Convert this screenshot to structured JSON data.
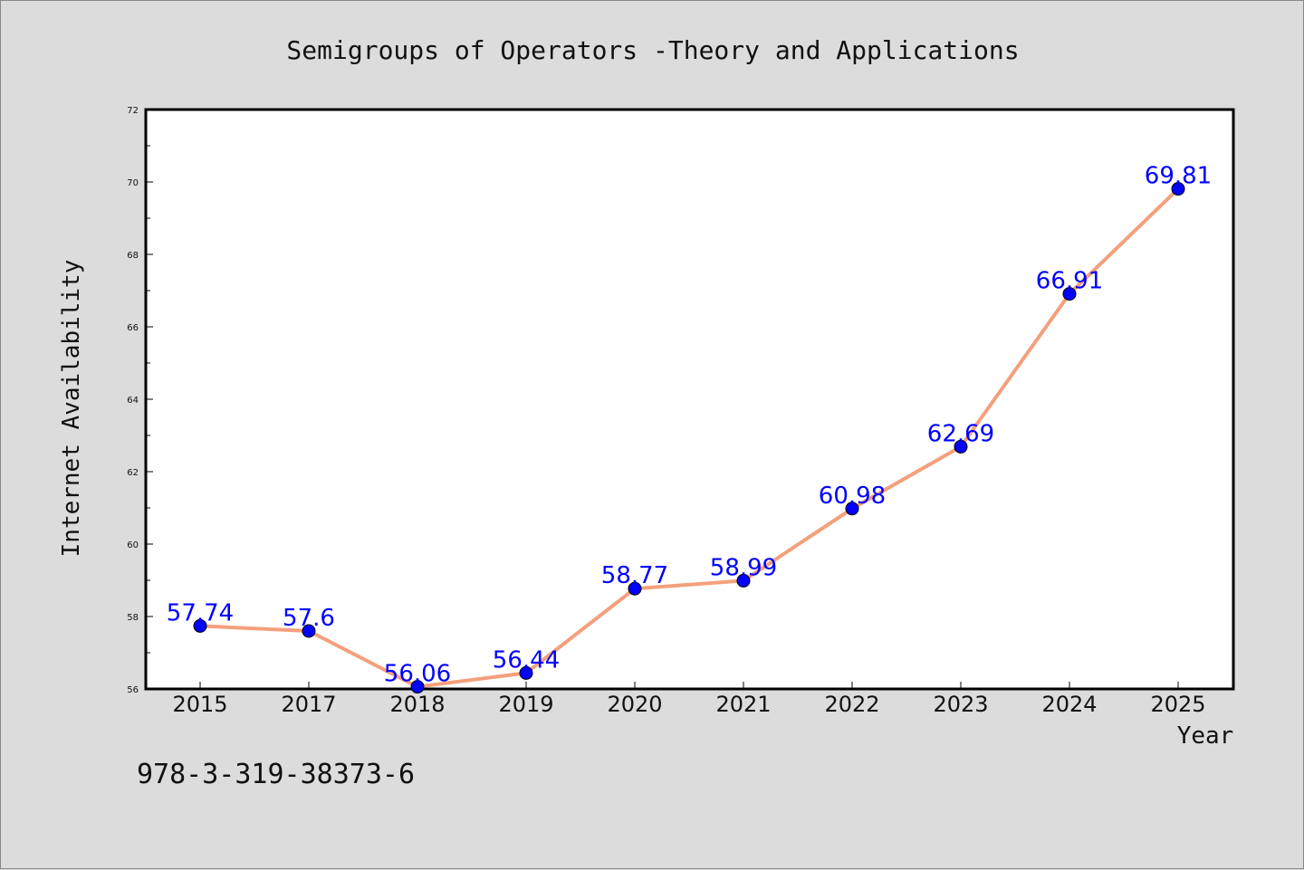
{
  "chart_data": {
    "type": "line",
    "title": "Semigroups of Operators -Theory and Applications",
    "xlabel": "Year",
    "ylabel": "Internet Availability",
    "categories": [
      "2015",
      "2017",
      "2018",
      "2019",
      "2020",
      "2021",
      "2022",
      "2023",
      "2024",
      "2025"
    ],
    "series": [
      {
        "values": [
          57.74,
          57.6,
          56.06,
          56.44,
          58.77,
          58.99,
          60.98,
          62.69,
          66.91,
          69.81
        ],
        "line_color": "#f4a07c",
        "marker_color": "#0000ff"
      }
    ],
    "data_labels": [
      "57.74",
      "57.6",
      "56.06",
      "56.44",
      "58.77",
      "58.99",
      "60.98",
      "62.69",
      "66.91",
      "69.81"
    ],
    "ylim": [
      56,
      72
    ],
    "yticks": [
      56,
      58,
      60,
      62,
      64,
      66,
      68,
      70,
      72
    ],
    "grid": false,
    "label_color": "#0000ff"
  },
  "footer_text": "978-3-319-38373-6",
  "colors": {
    "background": "#dcdcdc",
    "plot_background": "#ffffff",
    "frame": "#000000"
  }
}
